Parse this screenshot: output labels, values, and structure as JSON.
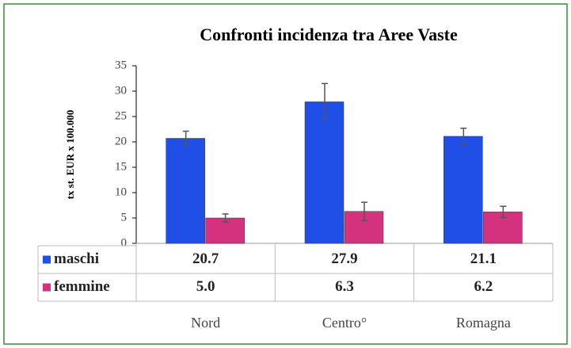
{
  "chart_data": {
    "type": "bar",
    "title": "Confronti incidenza tra Aree Vaste",
    "y_label": "tx st. EUR x 100.000",
    "categories": [
      "Nord",
      "Centro°",
      "Romagna"
    ],
    "series": [
      {
        "name": "maschi",
        "color": "#1f4fe6",
        "values": [
          20.7,
          27.9,
          21.1
        ],
        "value_labels": [
          "20.7",
          "27.9",
          "21.1"
        ],
        "errors": [
          1.4,
          3.6,
          1.6
        ]
      },
      {
        "name": "femmine",
        "color": "#d4327e",
        "values": [
          5.0,
          6.3,
          6.2
        ],
        "value_labels": [
          "5.0",
          "6.3",
          "6.2"
        ],
        "errors": [
          0.8,
          1.8,
          1.1
        ]
      }
    ],
    "ylim": [
      0,
      35
    ],
    "yticks": [
      0,
      5,
      10,
      15,
      20,
      25,
      30,
      35
    ],
    "grid": false
  }
}
